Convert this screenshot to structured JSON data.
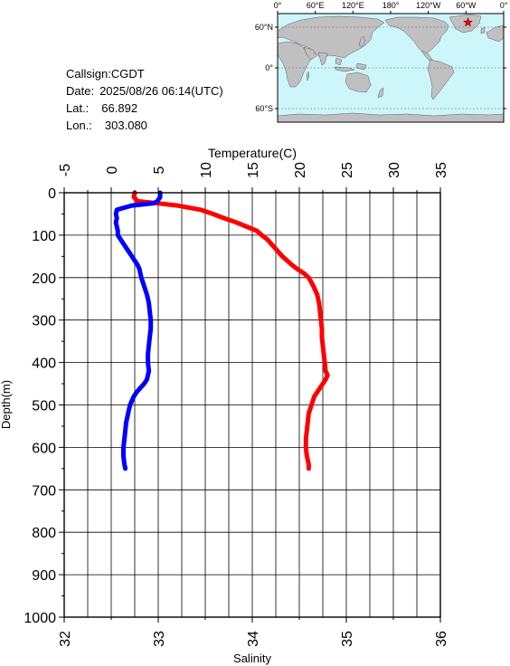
{
  "station": {
    "callsign_label": "Callsign:",
    "callsign": "CGDT",
    "date_label": "Date:",
    "date": "2025/08/26 06:14(UTC)",
    "lat_label": "Lat.:",
    "lat": "66.892",
    "lon_label": "Lon.:",
    "lon": "303.080"
  },
  "map": {
    "top_labels": [
      "0°",
      "60°E",
      "120°E",
      "180°",
      "120°W",
      "60°W",
      "0°"
    ],
    "side_labels": [
      "60°N",
      "0°",
      "60°S"
    ],
    "marker_lat": 66.892,
    "marker_lon": 303.08,
    "ocean_color": "#cdf6fb",
    "land_color": "#c0c0c0",
    "marker_color": "#ff0000"
  },
  "chart_data": {
    "type": "line",
    "title": "",
    "ylabel": "Depth(m)",
    "ylim": [
      0,
      1000
    ],
    "yticks": [
      0,
      100,
      200,
      300,
      400,
      500,
      600,
      700,
      800,
      900,
      1000
    ],
    "top_axis": {
      "label": "Temperature(C)",
      "range": [
        -5,
        35
      ],
      "ticks": [
        -5,
        0,
        5,
        10,
        15,
        20,
        25,
        30,
        35
      ]
    },
    "bottom_axis": {
      "label": "Salinity",
      "range": [
        32,
        36
      ],
      "ticks": [
        32,
        33,
        34,
        35,
        36
      ]
    },
    "grid": true,
    "series": [
      {
        "variable": "Temperature",
        "axis": "top",
        "color": "#ff0000",
        "depth": [
          0,
          10,
          20,
          25,
          30,
          40,
          50,
          60,
          70,
          80,
          90,
          100,
          110,
          120,
          130,
          140,
          150,
          160,
          170,
          180,
          190,
          200,
          220,
          240,
          260,
          280,
          300,
          320,
          340,
          360,
          380,
          400,
          420,
          430,
          440,
          450,
          460,
          470,
          480,
          500,
          520,
          540,
          560,
          580,
          600,
          620,
          640,
          650
        ],
        "value": [
          2.5,
          2.4,
          2.8,
          5.0,
          7.0,
          9.5,
          10.8,
          12.0,
          13.3,
          14.4,
          15.5,
          16.0,
          16.6,
          17.0,
          17.4,
          17.8,
          18.2,
          18.7,
          19.2,
          19.8,
          20.5,
          21.0,
          21.5,
          21.9,
          22.1,
          22.2,
          22.3,
          22.4,
          22.4,
          22.5,
          22.6,
          22.7,
          22.8,
          23.0,
          22.8,
          22.5,
          22.2,
          21.9,
          21.6,
          21.3,
          21.0,
          20.9,
          20.8,
          20.7,
          20.7,
          20.8,
          21.0,
          21.0
        ]
      },
      {
        "variable": "Salinity",
        "axis": "bottom",
        "color": "#0000ff",
        "depth": [
          0,
          10,
          20,
          25,
          30,
          40,
          50,
          60,
          70,
          80,
          90,
          100,
          110,
          120,
          130,
          140,
          150,
          160,
          170,
          180,
          190,
          200,
          220,
          240,
          260,
          280,
          300,
          320,
          340,
          360,
          380,
          400,
          420,
          440,
          450,
          460,
          470,
          480,
          490,
          500,
          520,
          540,
          560,
          580,
          600,
          620,
          640,
          650
        ],
        "value": [
          33.02,
          33.02,
          32.99,
          32.95,
          32.72,
          32.56,
          32.55,
          32.56,
          32.55,
          32.56,
          32.57,
          32.57,
          32.6,
          32.63,
          32.66,
          32.69,
          32.72,
          32.75,
          32.78,
          32.8,
          32.81,
          32.82,
          32.85,
          32.88,
          32.9,
          32.91,
          32.92,
          32.92,
          32.91,
          32.9,
          32.89,
          32.89,
          32.9,
          32.88,
          32.85,
          32.81,
          32.77,
          32.74,
          32.72,
          32.7,
          32.68,
          32.66,
          32.65,
          32.64,
          32.63,
          32.63,
          32.64,
          32.65
        ]
      }
    ]
  }
}
